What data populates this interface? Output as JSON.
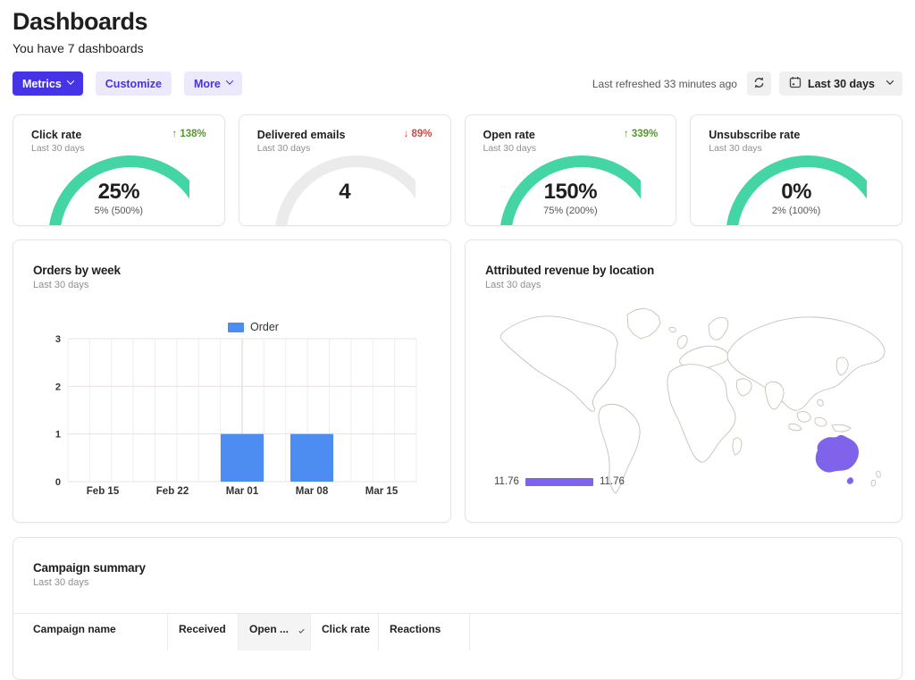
{
  "page": {
    "title": "Dashboards",
    "subtitle": "You have 7 dashboards"
  },
  "toolbar": {
    "metrics_label": "Metrics",
    "customize_label": "Customize",
    "more_label": "More",
    "last_refreshed": "Last refreshed 33 minutes ago",
    "date_range_label": "Last 30 days"
  },
  "metrics": {
    "cards": [
      {
        "title": "Click rate",
        "period": "Last 30 days",
        "delta_arrow": "↑",
        "delta": "138%",
        "delta_dir": "up",
        "value": "25%",
        "sub": "5% (500%)",
        "gauge_color": "#43d6a4"
      },
      {
        "title": "Delivered emails",
        "period": "Last 30 days",
        "delta_arrow": "↓",
        "delta": "89%",
        "delta_dir": "down",
        "value": "4",
        "sub": "",
        "gauge_color": "#ebebeb"
      },
      {
        "title": "Open rate",
        "period": "Last 30 days",
        "delta_arrow": "↑",
        "delta": "339%",
        "delta_dir": "up",
        "value": "150%",
        "sub": "75% (200%)",
        "gauge_color": "#43d6a4"
      },
      {
        "title": "Unsubscribe rate",
        "period": "Last 30 days",
        "delta_arrow": "",
        "delta": "",
        "delta_dir": "none",
        "value": "0%",
        "sub": "2% (100%)",
        "gauge_color": "#43d6a4"
      }
    ]
  },
  "orders_card": {
    "title": "Orders by week",
    "period": "Last 30 days"
  },
  "chart_data": {
    "type": "bar",
    "title": "Orders by week",
    "categories": [
      "Feb 15",
      "Feb 22",
      "Mar 01",
      "Mar 08",
      "Mar 15"
    ],
    "values": [
      0,
      0,
      1,
      1,
      0
    ],
    "series_name": "Order",
    "xlabel": "",
    "ylabel": "",
    "ylim": [
      0,
      3
    ],
    "yticks": [
      0,
      1,
      2,
      3
    ],
    "bar_color": "#4d8df2",
    "grid": true,
    "legend_position": "top-center"
  },
  "map_card": {
    "title": "Attributed revenue by location",
    "period": "Last 30 days",
    "legend_min": "11.76",
    "legend_max": "11.76",
    "highlight_region": "Australia",
    "highlight_value": 11.76,
    "highlight_color": "#7f63ea"
  },
  "campaign": {
    "title": "Campaign summary",
    "period": "Last 30 days",
    "columns": [
      {
        "label": "Campaign name"
      },
      {
        "label": "Received"
      },
      {
        "label": "Open ...",
        "dropdown": true
      },
      {
        "label": "Click rate"
      },
      {
        "label": "Reactions"
      }
    ]
  },
  "colors": {
    "primary_purple": "#4733e6",
    "soft_purple_bg": "#ece9fc",
    "gauge_green": "#43d6a4",
    "gauge_gray": "#ebebeb",
    "delta_up_green": "#56982d",
    "delta_down_red": "#cc4a43",
    "bar_blue": "#4d8df2",
    "map_outline": "#c9c1b5",
    "map_highlight_purple": "#7f63ea"
  }
}
